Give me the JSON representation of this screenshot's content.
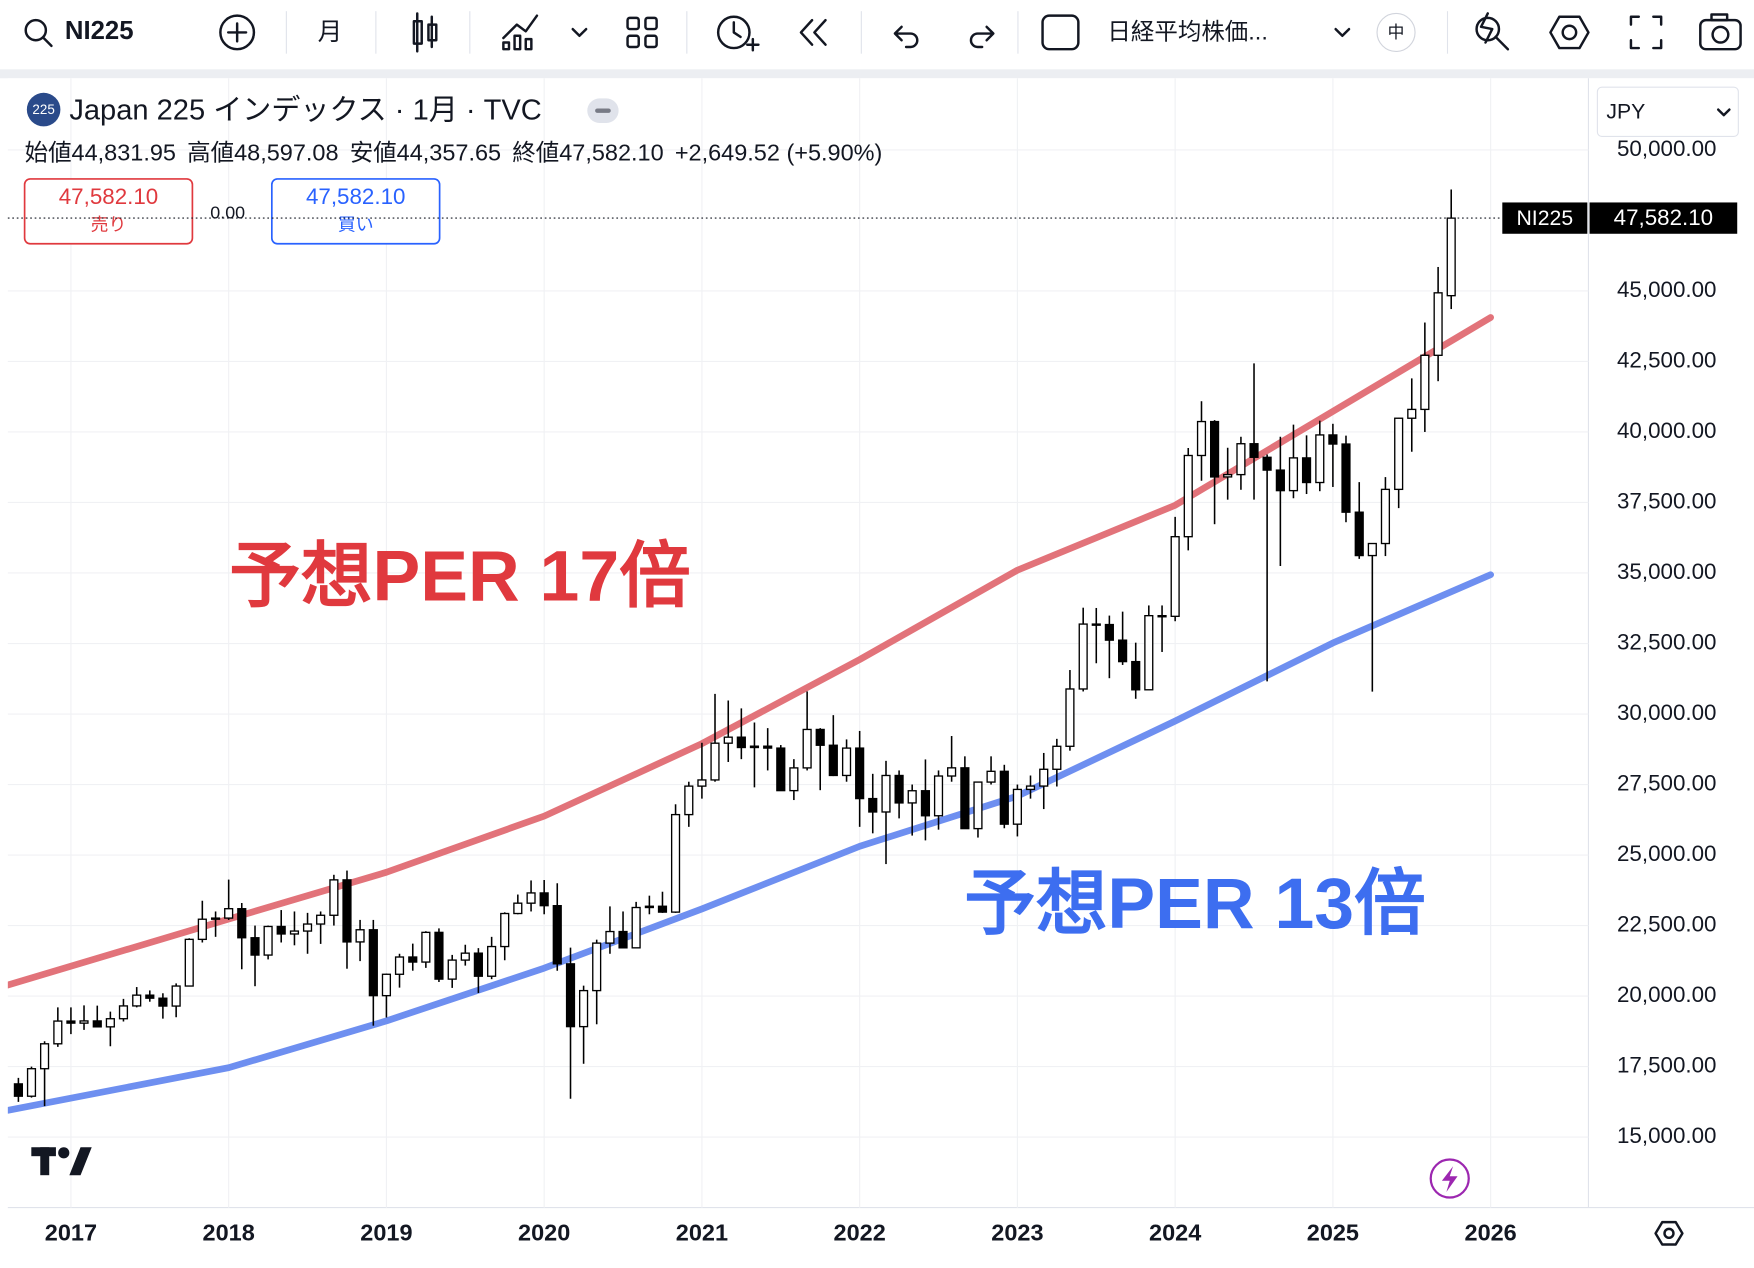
{
  "toolbar": {
    "symbol": "NI225",
    "interval": "月",
    "chart_name": "日経平均株価...",
    "lang": "中"
  },
  "legend": {
    "badge": "225",
    "title": "Japan 225 インデックス · 1月 · TVC",
    "ohlc": [
      {
        "label": "始値",
        "value": "44,831.95"
      },
      {
        "label": "高値",
        "value": "48,597.08"
      },
      {
        "label": "安値",
        "value": "44,357.65"
      },
      {
        "label": "終値",
        "value": "47,582.10"
      }
    ],
    "change": "+2,649.52 (+5.90%)"
  },
  "trade": {
    "sell_price": "47,582.10",
    "sell": "売り",
    "spread": "0.00",
    "buy_price": "47,582.10",
    "buy": "買い"
  },
  "currency": "JPY",
  "chart_data": {
    "type": "candlestick",
    "up_color": "#ffffff",
    "down_color": "#000000",
    "wick_color": "#000000",
    "grid": true,
    "last_price": {
      "value": 47582.1,
      "label": "47,582.10",
      "symbol": "NI225"
    },
    "xlim": [
      2016.6,
      2026.62
    ],
    "xticks": [
      2017,
      2018,
      2019,
      2020,
      2021,
      2022,
      2023,
      2024,
      2025,
      2026
    ],
    "ylim": [
      12500,
      52540
    ],
    "yticks": [
      {
        "value": 15000,
        "label": "15,000.00"
      },
      {
        "value": 17500,
        "label": "17,500.00"
      },
      {
        "value": 20000,
        "label": "20,000.00"
      },
      {
        "value": 22500,
        "label": "22,500.00"
      },
      {
        "value": 25000,
        "label": "25,000.00"
      },
      {
        "value": 27500,
        "label": "27,500.00"
      },
      {
        "value": 30000,
        "label": "30,000.00"
      },
      {
        "value": 32500,
        "label": "32,500.00"
      },
      {
        "value": 35000,
        "label": "35,000.00"
      },
      {
        "value": 37500,
        "label": "37,500.00"
      },
      {
        "value": 40000,
        "label": "40,000.00"
      },
      {
        "value": 42500,
        "label": "42,500.00"
      },
      {
        "value": 45000,
        "label": "45,000.00"
      },
      {
        "value": 50000,
        "label": "50,000.00"
      }
    ],
    "x": [
      2016.667,
      2016.75,
      2016.833,
      2016.917,
      2017,
      2017.083,
      2017.167,
      2017.25,
      2017.333,
      2017.417,
      2017.5,
      2017.583,
      2017.667,
      2017.75,
      2017.833,
      2017.917,
      2018,
      2018.083,
      2018.167,
      2018.25,
      2018.333,
      2018.417,
      2018.5,
      2018.583,
      2018.667,
      2018.75,
      2018.833,
      2018.917,
      2019,
      2019.083,
      2019.167,
      2019.25,
      2019.333,
      2019.417,
      2019.5,
      2019.583,
      2019.667,
      2019.75,
      2019.833,
      2019.917,
      2020,
      2020.083,
      2020.167,
      2020.25,
      2020.333,
      2020.417,
      2020.5,
      2020.583,
      2020.667,
      2020.75,
      2020.833,
      2020.917,
      2021,
      2021.083,
      2021.167,
      2021.25,
      2021.333,
      2021.417,
      2021.5,
      2021.583,
      2021.667,
      2021.75,
      2021.833,
      2021.917,
      2022,
      2022.083,
      2022.167,
      2022.25,
      2022.333,
      2022.417,
      2022.5,
      2022.583,
      2022.667,
      2022.75,
      2022.833,
      2022.917,
      2023,
      2023.083,
      2023.167,
      2023.25,
      2023.333,
      2023.417,
      2023.5,
      2023.583,
      2023.667,
      2023.75,
      2023.833,
      2023.917,
      2024,
      2024.083,
      2024.167,
      2024.25,
      2024.333,
      2024.417,
      2024.5,
      2024.583,
      2024.667,
      2024.75,
      2024.833,
      2024.917,
      2025,
      2025.083,
      2025.167,
      2025.25,
      2025.333,
      2025.417,
      2025.5,
      2025.583,
      2025.667,
      2025.75
    ],
    "open": [
      16887,
      16450,
      17425,
      18308,
      19114,
      19041,
      19119,
      18909,
      19197,
      19651,
      20033,
      19925,
      19646,
      20356,
      22011,
      22725,
      22765,
      23098,
      22068,
      21454,
      22468,
      22202,
      22305,
      22554,
      22865,
      24120,
      21920,
      22351,
      20015,
      20773,
      21385,
      21206,
      22259,
      20601,
      21276,
      21522,
      20704,
      21756,
      22927,
      23294,
      23657,
      23205,
      21143,
      18917,
      20194,
      21878,
      22288,
      21710,
      23140,
      23185,
      22977,
      26434,
      27444,
      27663,
      28966,
      29179,
      28813,
      28860,
      28792,
      27284,
      28090,
      29453,
      28893,
      27822,
      28792,
      27002,
      26527,
      27821,
      26848,
      27280,
      26393,
      27802,
      28092,
      25937,
      27587,
      27969,
      26095,
      27327,
      27446,
      28041,
      28856,
      30888,
      33189,
      33172,
      32619,
      31858,
      30859,
      33487,
      33464,
      36287,
      39166,
      40369,
      38406,
      38488,
      39583,
      39102,
      38648,
      37920,
      39081,
      38208,
      39895,
      39572,
      37156,
      35618,
      36045,
      37965,
      40487,
      40800,
      42718,
      44831.95
    ],
    "high": [
      17100,
      17500,
      18400,
      19600,
      19600,
      19670,
      19660,
      19450,
      19900,
      20320,
      20200,
      20100,
      20450,
      22050,
      23380,
      23000,
      24130,
      23300,
      22500,
      22500,
      23050,
      23000,
      22950,
      23000,
      24300,
      24450,
      22700,
      22700,
      20800,
      21500,
      21860,
      22300,
      22400,
      21460,
      21820,
      21700,
      22100,
      22970,
      23600,
      24100,
      24115,
      24000,
      21720,
      20370,
      22000,
      23180,
      23000,
      23340,
      23560,
      23700,
      26800,
      27600,
      28980,
      30714,
      30480,
      30200,
      29700,
      29500,
      28900,
      28400,
      30800,
      29500,
      29960,
      29100,
      29400,
      27880,
      28340,
      28000,
      27500,
      28390,
      28000,
      29220,
      28500,
      27600,
      28500,
      28200,
      27500,
      27820,
      28620,
      29120,
      31560,
      33770,
      33760,
      33490,
      33630,
      32530,
      33850,
      33850,
      36990,
      39430,
      41090,
      40420,
      39440,
      39830,
      42430,
      39200,
      39830,
      40260,
      39880,
      40400,
      40290,
      39870,
      38220,
      36000,
      38400,
      40500,
      41900,
      43880,
      45850,
      48597.08
    ],
    "low": [
      16250,
      16400,
      16100,
      18200,
      18650,
      18800,
      18900,
      18220,
      19100,
      19600,
      19800,
      19200,
      19250,
      20350,
      21900,
      22100,
      22700,
      20950,
      20350,
      21300,
      21900,
      21800,
      21500,
      21850,
      22500,
      20970,
      21240,
      18950,
      19240,
      20300,
      20900,
      21000,
      20500,
      20290,
      21080,
      20110,
      20600,
      21270,
      22900,
      23000,
      22900,
      20900,
      16358,
      17600,
      19000,
      21500,
      21700,
      21700,
      22900,
      22950,
      22950,
      26000,
      27000,
      27600,
      28300,
      28400,
      27400,
      28000,
      27300,
      26950,
      28000,
      27300,
      27800,
      27600,
      26000,
      25770,
      24680,
      26300,
      25690,
      25520,
      25900,
      27600,
      25930,
      25620,
      27500,
      25950,
      25660,
      27000,
      26630,
      27430,
      28700,
      30800,
      31800,
      31270,
      31740,
      30540,
      30900,
      32200,
      33290,
      35800,
      38270,
      36730,
      37600,
      37950,
      37600,
      31156,
      35250,
      37650,
      37800,
      37900,
      38050,
      36800,
      35500,
      30792,
      35600,
      37300,
      39300,
      40000,
      41800,
      44357.65
    ],
    "close": [
      16450,
      17425,
      18308,
      19114,
      19041,
      19119,
      18909,
      19197,
      19651,
      20033,
      19925,
      19646,
      20356,
      22011,
      22725,
      22765,
      23098,
      22068,
      21454,
      22468,
      22202,
      22305,
      22554,
      22865,
      24120,
      21920,
      22351,
      20015,
      20773,
      21385,
      21206,
      22259,
      20601,
      21276,
      21522,
      20704,
      21756,
      22927,
      23294,
      23657,
      23205,
      21143,
      18917,
      20194,
      21878,
      22288,
      21710,
      23140,
      23185,
      22977,
      26434,
      27444,
      27663,
      28966,
      29179,
      28813,
      28860,
      28792,
      27284,
      28090,
      29453,
      28893,
      27822,
      28792,
      27002,
      26527,
      27821,
      26848,
      27280,
      26393,
      27802,
      28092,
      25937,
      27587,
      27969,
      26095,
      27327,
      27446,
      28041,
      28856,
      30888,
      33189,
      33172,
      32619,
      31858,
      30859,
      33487,
      33464,
      36287,
      39166,
      40369,
      38406,
      38488,
      39583,
      39102,
      38648,
      37920,
      39081,
      38208,
      39895,
      39572,
      37156,
      35618,
      36045,
      37965,
      40487,
      40800,
      42718,
      44933,
      47582.1
    ],
    "series": [
      {
        "name": "予想PER 17倍",
        "color": "#e2737a",
        "label_color": "#e0393e",
        "x": [
          2016.6,
          2018,
          2019,
          2020,
          2021,
          2022,
          2023,
          2024,
          2025,
          2026
        ],
        "values": [
          20390,
          22730,
          24390,
          26380,
          28950,
          31930,
          35100,
          37400,
          40730,
          44060
        ]
      },
      {
        "name": "予想PER 13倍",
        "color": "#6e8ff0",
        "label_color": "#3d6ef0",
        "x": [
          2016.6,
          2018,
          2019,
          2020,
          2021,
          2022,
          2023,
          2024,
          2025,
          2026
        ],
        "values": [
          15950,
          17460,
          19120,
          20990,
          23090,
          25310,
          27090,
          29750,
          32520,
          34940
        ]
      }
    ]
  }
}
